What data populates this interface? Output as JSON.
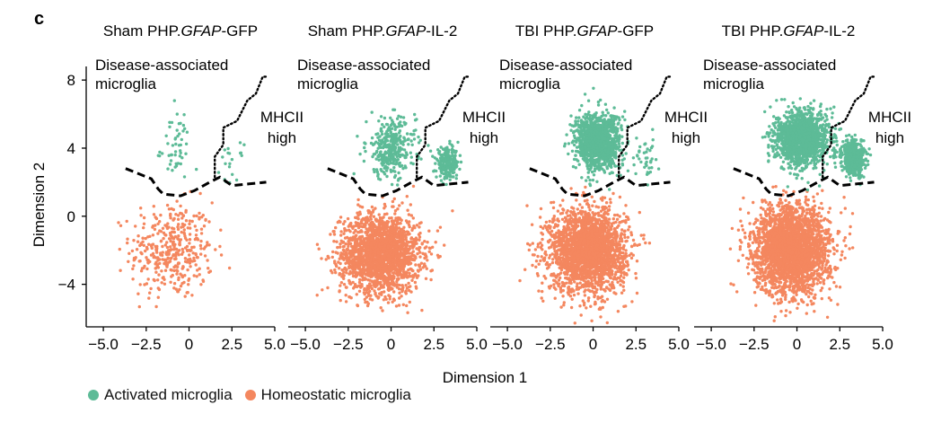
{
  "panel_letter": "c",
  "chart_data": {
    "type": "scatter",
    "xlabel": "Dimension 1",
    "ylabel": "Dimension 2",
    "xlim": [
      -6.0,
      5.0
    ],
    "ylim": [
      -6.5,
      8.8
    ],
    "xticks": [
      -5.0,
      -2.5,
      0,
      2.5,
      5.0
    ],
    "xtick_labels": [
      "−5.0",
      "−2.5",
      "0",
      "2.5",
      "5.0"
    ],
    "yticks": [
      -4,
      0,
      4,
      8
    ],
    "ytick_labels": [
      "−4",
      "0",
      "4",
      "8"
    ],
    "colors": {
      "activated": "#5dbb97",
      "homeostatic": "#f4875f",
      "boundary": "#000000"
    },
    "legend": [
      {
        "key": "activated",
        "label": "Activated microglia"
      },
      {
        "key": "homeostatic",
        "label": "Homeostatic microglia"
      }
    ],
    "panels": [
      {
        "title_prefix": "Sham PHP.",
        "title_italic": "GFAP",
        "title_suffix": "-GFP",
        "annotation_dam": [
          "Disease-associated",
          "microglia"
        ],
        "annotation_mhc": [
          "MHCII",
          "high"
        ],
        "clusters": [
          {
            "class": "homeostatic",
            "n": 380,
            "cx": -1.0,
            "cy": -2.0,
            "sx": 2.2,
            "sy": 2.6,
            "xmin": -5.5,
            "xmax": 3.0,
            "ymin": -6.2,
            "ymax": 1.6
          },
          {
            "class": "activated",
            "n": 50,
            "cx": -0.8,
            "cy": 4.0,
            "sx": 0.8,
            "sy": 2.0,
            "xmin": -2.3,
            "xmax": 1.2,
            "ymin": 1.8,
            "ymax": 7.5
          },
          {
            "class": "activated",
            "n": 20,
            "cx": 2.5,
            "cy": 3.0,
            "sx": 0.6,
            "sy": 1.1,
            "xmin": 1.5,
            "xmax": 3.8,
            "ymin": 1.8,
            "ymax": 5.2
          }
        ]
      },
      {
        "title_prefix": "Sham PHP.",
        "title_italic": "GFAP",
        "title_suffix": "-IL-2",
        "annotation_dam": [
          "Disease-associated",
          "microglia"
        ],
        "annotation_mhc": [
          "MHCII",
          "high"
        ],
        "clusters": [
          {
            "class": "homeostatic",
            "n": 2000,
            "cx": -0.6,
            "cy": -2.2,
            "sx": 2.1,
            "sy": 2.1,
            "xmin": -5.0,
            "xmax": 3.6,
            "ymin": -6.4,
            "ymax": 1.8
          },
          {
            "class": "activated",
            "n": 330,
            "cx": 0.0,
            "cy": 4.0,
            "sx": 1.3,
            "sy": 1.6,
            "xmin": -2.2,
            "xmax": 2.2,
            "ymin": 1.8,
            "ymax": 7.6
          },
          {
            "class": "activated",
            "n": 230,
            "cx": 3.3,
            "cy": 3.1,
            "sx": 0.6,
            "sy": 0.8,
            "xmin": 2.0,
            "xmax": 4.6,
            "ymin": 1.8,
            "ymax": 5.0
          }
        ]
      },
      {
        "title_prefix": "TBI PHP.",
        "title_italic": "GFAP",
        "title_suffix": "-GFP",
        "annotation_dam": [
          "Disease-associated",
          "microglia"
        ],
        "annotation_mhc": [
          "MHCII",
          "high"
        ],
        "clusters": [
          {
            "class": "homeostatic",
            "n": 2300,
            "cx": -0.3,
            "cy": -2.0,
            "sx": 2.0,
            "sy": 2.2,
            "xmin": -4.9,
            "xmax": 3.8,
            "ymin": -6.4,
            "ymax": 1.8
          },
          {
            "class": "activated",
            "n": 1150,
            "cx": 0.3,
            "cy": 4.4,
            "sx": 1.2,
            "sy": 1.5,
            "xmin": -2.0,
            "xmax": 2.3,
            "ymin": 1.5,
            "ymax": 7.8
          },
          {
            "class": "activated",
            "n": 40,
            "cx": 3.0,
            "cy": 3.4,
            "sx": 0.7,
            "sy": 1.1,
            "xmin": 1.5,
            "xmax": 4.5,
            "ymin": 1.8,
            "ymax": 5.5
          }
        ]
      },
      {
        "title_prefix": "TBI PHP.",
        "title_italic": "GFAP",
        "title_suffix": "-IL-2",
        "annotation_dam": [
          "Disease-associated",
          "microglia"
        ],
        "annotation_mhc": [
          "MHCII",
          "high"
        ],
        "clusters": [
          {
            "class": "homeostatic",
            "n": 2600,
            "cx": -0.3,
            "cy": -2.0,
            "sx": 2.0,
            "sy": 2.3,
            "xmin": -4.6,
            "xmax": 3.8,
            "ymin": -6.2,
            "ymax": 1.8
          },
          {
            "class": "activated",
            "n": 1500,
            "cx": 0.3,
            "cy": 4.6,
            "sx": 1.4,
            "sy": 1.4,
            "xmin": -2.0,
            "xmax": 2.8,
            "ymin": 1.5,
            "ymax": 7.8
          },
          {
            "class": "activated",
            "n": 500,
            "cx": 3.3,
            "cy": 3.4,
            "sx": 0.6,
            "sy": 0.9,
            "xmin": 2.0,
            "xmax": 4.5,
            "ymin": 1.8,
            "ymax": 5.5
          }
        ]
      }
    ],
    "boundary_dashed": [
      [
        -3.7,
        2.8
      ],
      [
        -2.2,
        2.2
      ],
      [
        -1.8,
        1.6
      ],
      [
        -1.5,
        1.3
      ],
      [
        -0.5,
        1.2
      ],
      [
        0.3,
        1.5
      ],
      [
        1.2,
        2.0
      ],
      [
        1.8,
        2.3
      ],
      [
        2.5,
        1.8
      ],
      [
        3.5,
        1.9
      ],
      [
        4.5,
        2.0
      ]
    ],
    "boundary_dotted": [
      [
        1.5,
        2.3
      ],
      [
        1.5,
        3.5
      ],
      [
        2.0,
        4.2
      ],
      [
        2.0,
        5.2
      ],
      [
        2.8,
        5.6
      ],
      [
        3.4,
        6.8
      ],
      [
        3.9,
        7.2
      ],
      [
        4.3,
        8.2
      ],
      [
        4.6,
        8.2
      ]
    ]
  }
}
